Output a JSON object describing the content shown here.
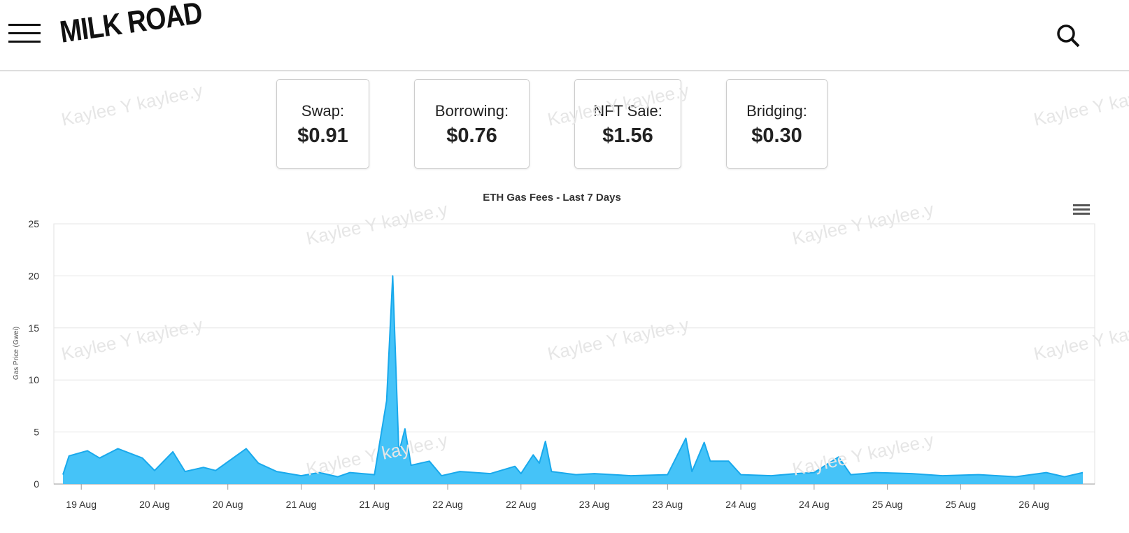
{
  "header": {
    "logo": "MILK ROAD"
  },
  "watermark": "Kaylee Y kaylee.y",
  "cards": [
    {
      "label": "Swap:",
      "value": "$0.91"
    },
    {
      "label": "Borrowing:",
      "value": "$0.76"
    },
    {
      "label": "NFT Sale:",
      "value": "$1.56"
    },
    {
      "label": "Bridging:",
      "value": "$0.30"
    }
  ],
  "chart_data": {
    "type": "area",
    "title": "ETH Gas Fees - Last 7 Days",
    "y_label": "Gas Price (Gwei)",
    "color": "#45c3f8",
    "line_color": "#19a9ec",
    "grid": true,
    "x": [
      -3,
      -2,
      1,
      3,
      6,
      10,
      12,
      15,
      17,
      20,
      22,
      27,
      29,
      32,
      36,
      39,
      42,
      44,
      48,
      50,
      51,
      52,
      53,
      54,
      57,
      59,
      62,
      67,
      71,
      72,
      74,
      75,
      76,
      77,
      81,
      84,
      90,
      96,
      99,
      100,
      102,
      103,
      106,
      108,
      113,
      117,
      120,
      124,
      126,
      130,
      136,
      141,
      147,
      153,
      158,
      161,
      164
    ],
    "values": [
      0.9,
      2.7,
      3.2,
      2.5,
      3.4,
      2.5,
      1.3,
      3.1,
      1.2,
      1.6,
      1.3,
      3.4,
      2.0,
      1.2,
      0.8,
      1.1,
      0.7,
      1.1,
      0.9,
      8,
      20,
      3,
      5.3,
      1.8,
      2.2,
      0.8,
      1.2,
      1.0,
      1.7,
      1.0,
      2.8,
      2.0,
      4.1,
      1.2,
      0.9,
      1.0,
      0.8,
      0.9,
      4.4,
      1.2,
      4.0,
      2.2,
      2.2,
      0.9,
      0.8,
      1.0,
      1.1,
      2.6,
      0.9,
      1.1,
      1.0,
      0.8,
      0.9,
      0.7,
      1.1,
      0.7,
      1.1
    ],
    "xlim": [
      -3,
      164
    ],
    "xticks": [
      {
        "value": 0,
        "label": "19 Aug"
      },
      {
        "value": 12,
        "label": "20 Aug"
      },
      {
        "value": 24,
        "label": "20 Aug"
      },
      {
        "value": 36,
        "label": "21 Aug"
      },
      {
        "value": 48,
        "label": "21 Aug"
      },
      {
        "value": 60,
        "label": "22 Aug"
      },
      {
        "value": 72,
        "label": "22 Aug"
      },
      {
        "value": 84,
        "label": "23 Aug"
      },
      {
        "value": 96,
        "label": "23 Aug"
      },
      {
        "value": 108,
        "label": "24 Aug"
      },
      {
        "value": 120,
        "label": "24 Aug"
      },
      {
        "value": 132,
        "label": "25 Aug"
      },
      {
        "value": 144,
        "label": "25 Aug"
      },
      {
        "value": 156,
        "label": "26 Aug"
      }
    ],
    "ylim": [
      0,
      25
    ],
    "yticks": [
      0,
      5,
      10,
      15,
      20,
      25
    ]
  }
}
